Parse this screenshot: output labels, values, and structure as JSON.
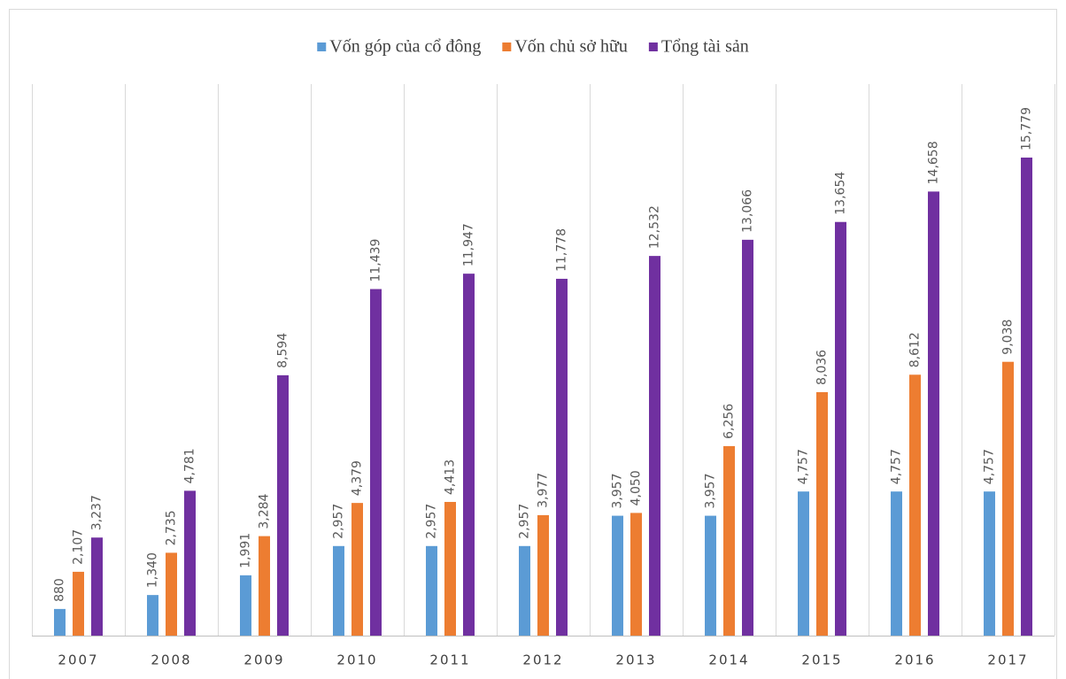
{
  "chart_data": {
    "type": "bar",
    "categories": [
      "2007",
      "2008",
      "2009",
      "2010",
      "2011",
      "2012",
      "2013",
      "2014",
      "2015",
      "2016",
      "2017"
    ],
    "series": [
      {
        "name": "Vốn góp của cổ đông",
        "color": "#5b9bd5",
        "values": [
          880,
          1340,
          1991,
          2957,
          2957,
          2957,
          3957,
          3957,
          4757,
          4757,
          4757
        ],
        "value_labels": [
          "880",
          "1,340",
          "1,991",
          "2,957",
          "2,957",
          "2,957",
          "3,957",
          "3,957",
          "4,757",
          "4,757",
          "4,757"
        ]
      },
      {
        "name": "Vốn chủ sở hữu",
        "color": "#ed7d31",
        "values": [
          2107,
          2735,
          3284,
          4379,
          4413,
          3977,
          4050,
          6256,
          8036,
          8612,
          9038
        ],
        "value_labels": [
          "2,107",
          "2,735",
          "3,284",
          "4,379",
          "4,413",
          "3,977",
          "4,050",
          "6,256",
          "8,036",
          "8,612",
          "9,038"
        ]
      },
      {
        "name": "Tổng tài sản",
        "color": "#7030a0",
        "values": [
          3237,
          4781,
          8594,
          11439,
          11947,
          11778,
          12532,
          13066,
          13654,
          14658,
          15779
        ],
        "value_labels": [
          "3,237",
          "4,781",
          "8,594",
          "11,439",
          "11,947",
          "11,778",
          "12,532",
          "13,066",
          "13,654",
          "14,658",
          "15,779"
        ]
      }
    ],
    "ylim": [
      0,
      18000
    ],
    "legend": "top",
    "grid": true
  }
}
